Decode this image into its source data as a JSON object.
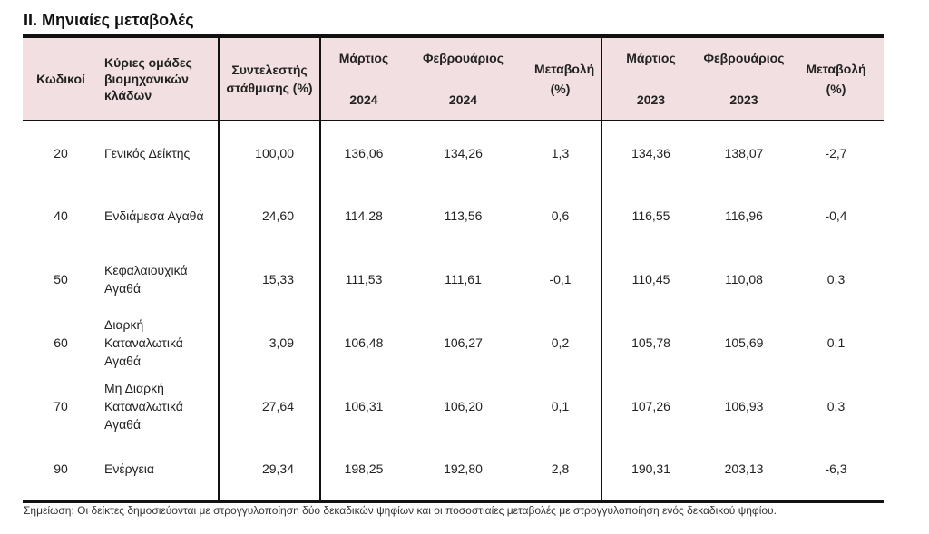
{
  "title": "II. Μηνιαίες μεταβολές",
  "headers": {
    "code": "Κωδικοί",
    "groups": "Κύριες ομάδες βιομηχανικών κλάδων",
    "weight": "Συντελεστής στάθμισης (%)",
    "mar_label": "Μάρτιος",
    "feb_label": "Φεβρουάριος",
    "change": "Μεταβολή (%)",
    "year_2024": "2024",
    "year_2023": "2023"
  },
  "rows": [
    {
      "code": "20",
      "group": "Γενικός Δείκτης",
      "weight": "100,00",
      "mar24": "136,06",
      "feb24": "134,26",
      "chg24": "1,3",
      "mar23": "134,36",
      "feb23": "138,07",
      "chg23": "-2,7"
    },
    {
      "code": "40",
      "group": "Ενδιάμεσα Αγαθά",
      "weight": "24,60",
      "mar24": "114,28",
      "feb24": "113,56",
      "chg24": "0,6",
      "mar23": "116,55",
      "feb23": "116,96",
      "chg23": "-0,4"
    },
    {
      "code": "50",
      "group": "Κεφαλαιουχικά Αγαθά",
      "weight": "15,33",
      "mar24": "111,53",
      "feb24": "111,61",
      "chg24": "-0,1",
      "mar23": "110,45",
      "feb23": "110,08",
      "chg23": "0,3"
    },
    {
      "code": "60",
      "group": "Διαρκή Καταναλωτικά Αγαθά",
      "weight": "3,09",
      "mar24": "106,48",
      "feb24": "106,27",
      "chg24": "0,2",
      "mar23": "105,78",
      "feb23": "105,69",
      "chg23": "0,1"
    },
    {
      "code": "70",
      "group": "Μη Διαρκή Καταναλωτικά Αγαθά",
      "weight": "27,64",
      "mar24": "106,31",
      "feb24": "106,20",
      "chg24": "0,1",
      "mar23": "107,26",
      "feb23": "106,93",
      "chg23": "0,3"
    },
    {
      "code": "90",
      "group": "Ενέργεια",
      "weight": "29,34",
      "mar24": "198,25",
      "feb24": "192,80",
      "chg24": "2,8",
      "mar23": "190,31",
      "feb23": "203,13",
      "chg23": "-6,3"
    }
  ],
  "footnote": "Σημείωση: Οι δείκτες δημοσιεύονται με στρογγυλοποίηση δύο δεκαδικών ψηφίων και οι ποσοστιαίες μεταβολές με στρογγυλοποίηση ενός δεκαδικού ψηφίου."
}
